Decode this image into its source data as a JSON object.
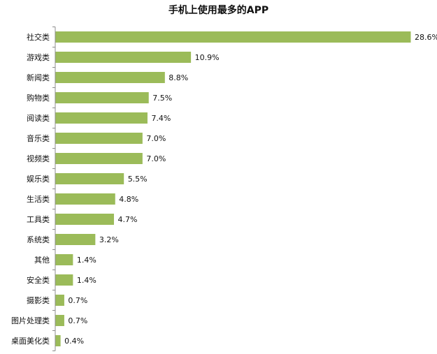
{
  "chart_data": {
    "type": "bar",
    "orientation": "horizontal",
    "title": "手机上使用最多的APP",
    "xlabel": "",
    "ylabel": "",
    "xlim": [
      0,
      28.6
    ],
    "grid": false,
    "legend": "none",
    "bar_color": "#9bbb59",
    "categories": [
      "社交类",
      "游戏类",
      "新闻类",
      "购物类",
      "阅读类",
      "音乐类",
      "视频类",
      "娱乐类",
      "生活类",
      "工具类",
      "系统类",
      "其他",
      "安全类",
      "摄影类",
      "图片处理类",
      "桌面美化类"
    ],
    "values": [
      28.6,
      10.9,
      8.8,
      7.5,
      7.4,
      7.0,
      7.0,
      5.5,
      4.8,
      4.7,
      3.2,
      1.4,
      1.4,
      0.7,
      0.7,
      0.4
    ],
    "value_labels": [
      "28.6%",
      "10.9%",
      "8.8%",
      "7.5%",
      "7.4%",
      "7.0%",
      "7.0%",
      "5.5%",
      "4.8%",
      "4.7%",
      "3.2%",
      "1.4%",
      "1.4%",
      "0.7%",
      "0.7%",
      "0.4%"
    ]
  }
}
